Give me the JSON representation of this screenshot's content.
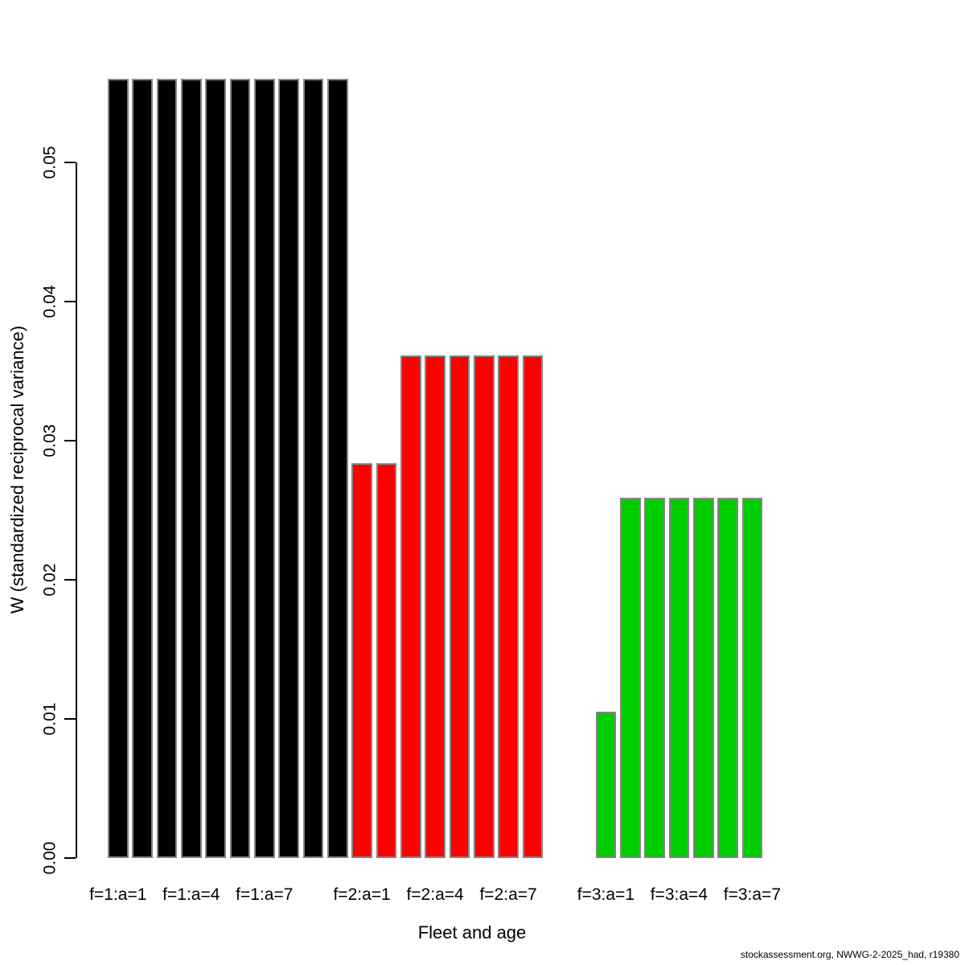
{
  "chart_data": {
    "type": "bar",
    "title": "",
    "xlabel": "Fleet and age",
    "ylabel": "W (standardized reciprocal variance)",
    "ylim": [
      0,
      0.058
    ],
    "yticks": [
      0,
      0.01,
      0.02,
      0.03,
      0.04,
      0.05
    ],
    "ytick_labels": [
      "0.00",
      "0.01",
      "0.02",
      "0.03",
      "0.04",
      "0.05"
    ],
    "grid": false,
    "legend_position": "none",
    "bar_border_color": "#848484",
    "total_slots": 27,
    "groups": [
      {
        "name": "fleet-1",
        "color": "#000000",
        "start_slot": 0,
        "ages": [
          1,
          2,
          3,
          4,
          5,
          6,
          7,
          8,
          9,
          10
        ],
        "values": [
          0.056,
          0.056,
          0.056,
          0.056,
          0.056,
          0.056,
          0.056,
          0.056,
          0.056,
          0.056
        ]
      },
      {
        "name": "fleet-2",
        "color": "#FF0000",
        "start_slot": 10,
        "ages": [
          1,
          2,
          3,
          4,
          5,
          6,
          7,
          8
        ],
        "values": [
          0.0284,
          0.0284,
          0.0361,
          0.0361,
          0.0361,
          0.0361,
          0.0361,
          0.0361
        ]
      },
      {
        "name": "fleet-3",
        "color": "#00CD00",
        "start_slot": 20,
        "ages": [
          1,
          2,
          3,
          4,
          5,
          6,
          7
        ],
        "values": [
          0.0105,
          0.0259,
          0.0259,
          0.0259,
          0.0259,
          0.0259,
          0.0259
        ]
      }
    ],
    "xtick_labels": [
      {
        "label": "f=1:a=1",
        "slot": 0
      },
      {
        "label": "f=1:a=4",
        "slot": 3
      },
      {
        "label": "f=1:a=7",
        "slot": 6
      },
      {
        "label": "f=2:a=1",
        "slot": 10
      },
      {
        "label": "f=2:a=4",
        "slot": 13
      },
      {
        "label": "f=2:a=7",
        "slot": 16
      },
      {
        "label": "f=3:a=1",
        "slot": 20
      },
      {
        "label": "f=3:a=4",
        "slot": 23
      },
      {
        "label": "f=3:a=7",
        "slot": 26
      }
    ]
  },
  "footer": {
    "text": "stockassessment.org, NWWG-2-2025_had, r19380"
  }
}
